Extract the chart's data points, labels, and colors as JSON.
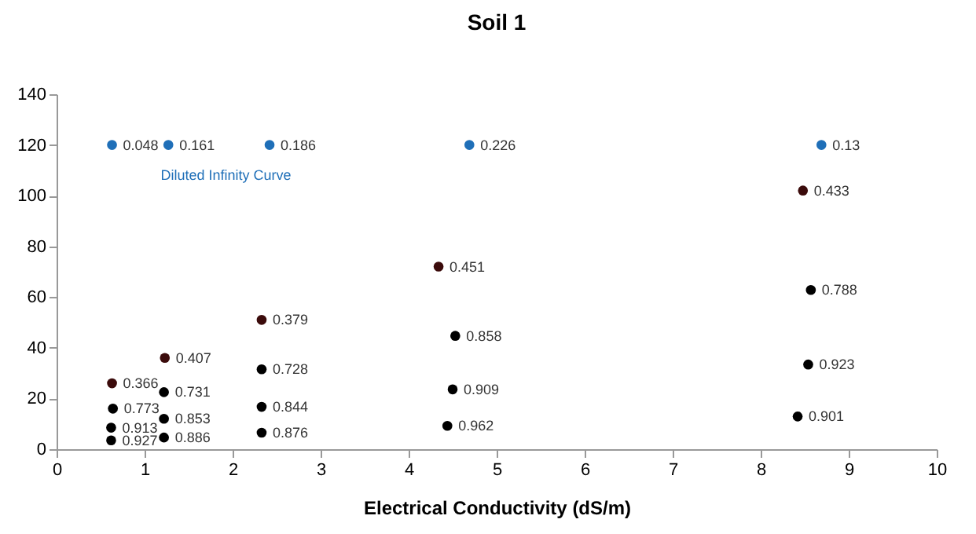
{
  "chart_data": {
    "type": "scatter",
    "title": "Soil  1",
    "xlabel": "Electrical Conductivity (dS/m)",
    "xlim": [
      0,
      10
    ],
    "xticks": [
      0,
      1,
      2,
      3,
      4,
      5,
      6,
      7,
      8,
      9,
      10
    ],
    "ylim": [
      0,
      140
    ],
    "yticks": [
      0,
      20,
      40,
      60,
      80,
      100,
      120,
      140
    ],
    "grid": false,
    "legend": false,
    "marker": "circle",
    "series": [
      {
        "name": "Diluted Infinity Curve",
        "color": "#1f6fb8",
        "x": [
          0.63,
          1.27,
          2.42,
          4.69,
          8.69
        ],
        "values": [
          120,
          120,
          120,
          120,
          120
        ]
      },
      {
        "color": "#3b0b0b",
        "x": [
          0.63,
          1.23,
          2.33,
          4.34,
          8.48
        ],
        "values": [
          26,
          36,
          51,
          72,
          102
        ]
      },
      {
        "color": "#000000",
        "x": [
          0.64,
          0.62,
          0.62,
          1.22,
          1.22,
          1.22,
          2.33,
          2.33,
          2.33,
          4.53,
          4.5,
          4.44,
          8.57,
          8.54,
          8.42
        ],
        "values": [
          16,
          8.5,
          3.5,
          22.5,
          12,
          4.6,
          31.5,
          16.7,
          6.5,
          44.7,
          23.6,
          9.2,
          62.8,
          33.4,
          12.9
        ]
      }
    ],
    "annotations": [
      {
        "text": "0.048",
        "x": 0.63,
        "y": 120
      },
      {
        "text": "0.161",
        "x": 1.27,
        "y": 120
      },
      {
        "text": "0.186",
        "x": 2.42,
        "y": 120
      },
      {
        "text": "0.226",
        "x": 4.69,
        "y": 120
      },
      {
        "text": "0.13",
        "x": 8.69,
        "y": 120
      },
      {
        "text": "0.366",
        "x": 0.63,
        "y": 26
      },
      {
        "text": "0.407",
        "x": 1.23,
        "y": 36
      },
      {
        "text": "0.379",
        "x": 2.33,
        "y": 51
      },
      {
        "text": "0.451",
        "x": 4.34,
        "y": 72
      },
      {
        "text": "0.433",
        "x": 8.48,
        "y": 102
      },
      {
        "text": "0.773",
        "x": 0.64,
        "y": 16
      },
      {
        "text": "0.913",
        "x": 0.62,
        "y": 8.5
      },
      {
        "text": "0.927",
        "x": 0.62,
        "y": 3.5
      },
      {
        "text": "0.731",
        "x": 1.22,
        "y": 22.5
      },
      {
        "text": "0.853",
        "x": 1.22,
        "y": 12
      },
      {
        "text": "0.886",
        "x": 1.22,
        "y": 4.6
      },
      {
        "text": "0.728",
        "x": 2.33,
        "y": 31.5
      },
      {
        "text": "0.844",
        "x": 2.33,
        "y": 16.7
      },
      {
        "text": "0.876",
        "x": 2.33,
        "y": 6.5
      },
      {
        "text": "0.858",
        "x": 4.53,
        "y": 44.7
      },
      {
        "text": "0.909",
        "x": 4.5,
        "y": 23.6
      },
      {
        "text": "0.962",
        "x": 4.44,
        "y": 9.2
      },
      {
        "text": "0.788",
        "x": 8.57,
        "y": 62.8
      },
      {
        "text": "0.923",
        "x": 8.54,
        "y": 33.4
      },
      {
        "text": "0.901",
        "x": 8.42,
        "y": 12.9
      }
    ]
  }
}
